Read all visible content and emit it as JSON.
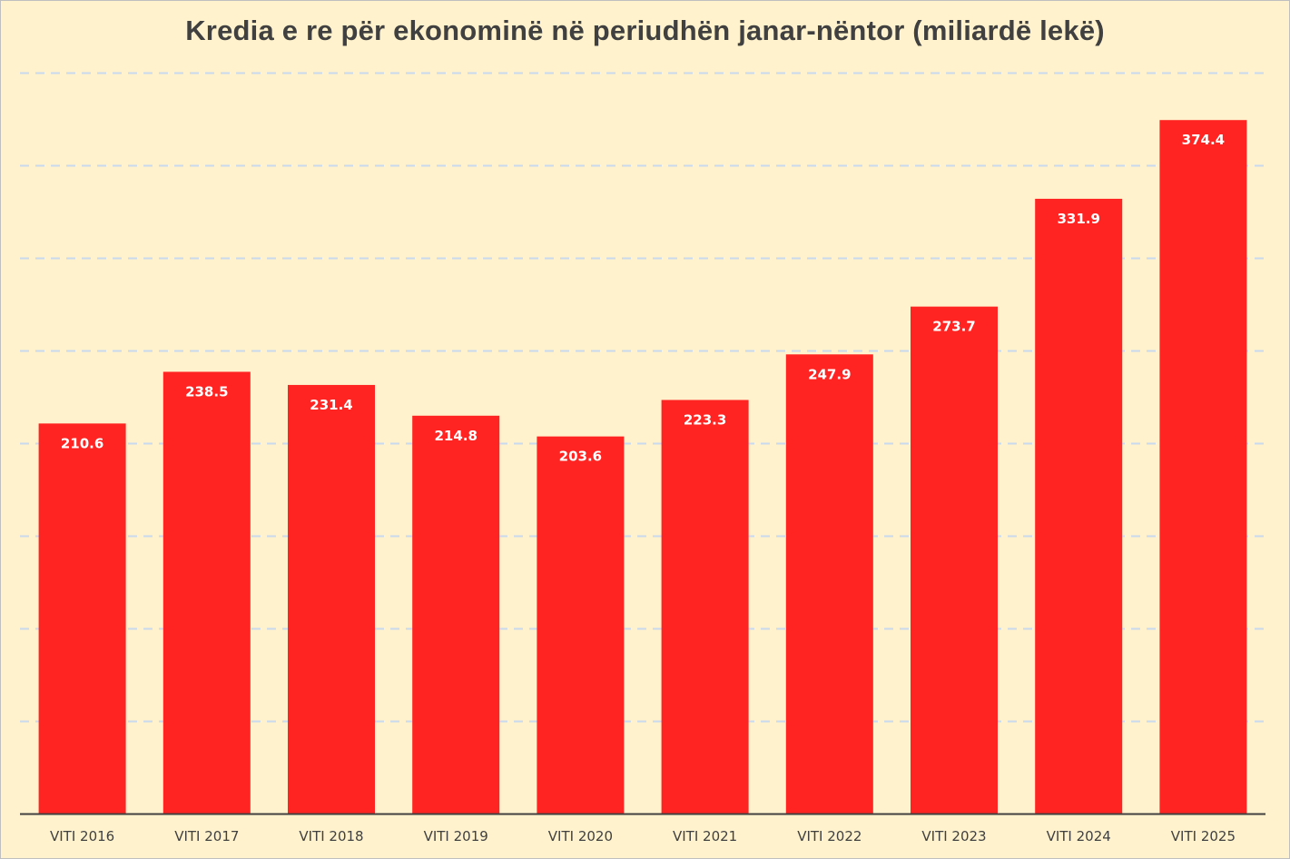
{
  "chart_data": {
    "type": "bar",
    "title": "Kredia e re për ekonominë në periudhën janar-nëntor (miliardë lekë)",
    "xlabel": "",
    "ylabel": "",
    "categories": [
      "VITI 2016",
      "VITI 2017",
      "VITI 2018",
      "VITI 2019",
      "VITI 2020",
      "VITI 2021",
      "VITI 2022",
      "VITI 2023",
      "VITI 2024",
      "VITI 2025"
    ],
    "values": [
      210.6,
      238.5,
      231.4,
      214.8,
      203.6,
      223.3,
      247.9,
      273.7,
      331.9,
      374.4
    ],
    "value_labels": [
      "210.6",
      "238.5",
      "231.4",
      "214.8",
      "203.6",
      "223.3",
      "247.9",
      "273.7",
      "331.9",
      "374.4"
    ],
    "ylim": [
      0,
      400
    ],
    "grid": true,
    "legend": "none",
    "colors": {
      "bar": "#ff2421",
      "background": "#fff2cc",
      "grid": "#c9d9ee",
      "title": "#404040",
      "axis": "#404040"
    }
  }
}
